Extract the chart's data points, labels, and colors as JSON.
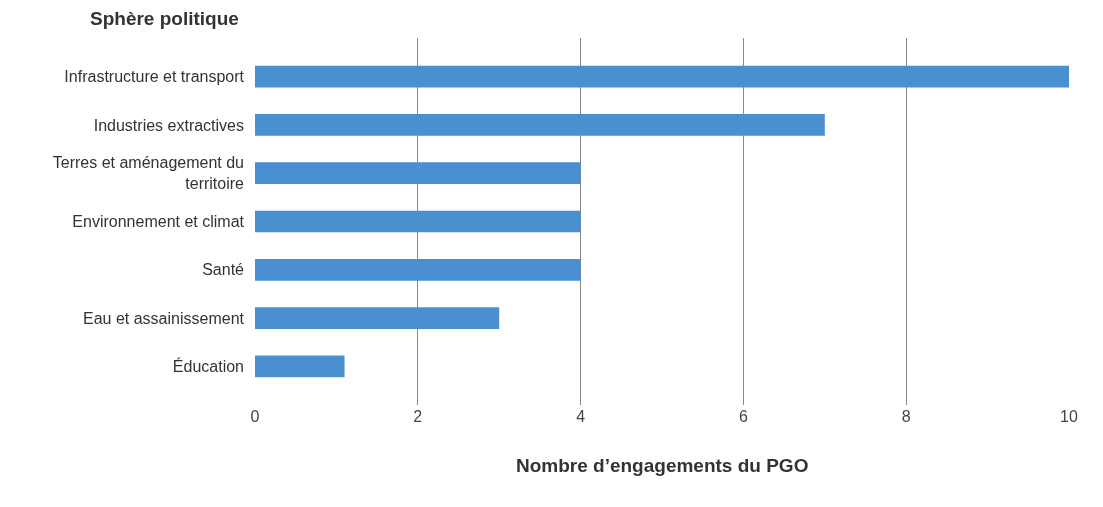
{
  "chart_data": {
    "type": "bar",
    "orientation": "horizontal",
    "ylabel": "Sphère politique",
    "xlabel": "Nombre d’engagements du PGO",
    "categories": [
      "Infrastructure et transport",
      "Industries extractives",
      "Terres et aménagement du territoire",
      "Environnement et climat",
      "Santé",
      "Eau et assainissement",
      "Éducation"
    ],
    "values": [
      10,
      7,
      4,
      4,
      4,
      3,
      1.1
    ],
    "color": "#4a8fcf",
    "xlim": [
      0,
      10
    ],
    "xticks": [
      0,
      2,
      4,
      6,
      8,
      10
    ],
    "grid": "x"
  }
}
